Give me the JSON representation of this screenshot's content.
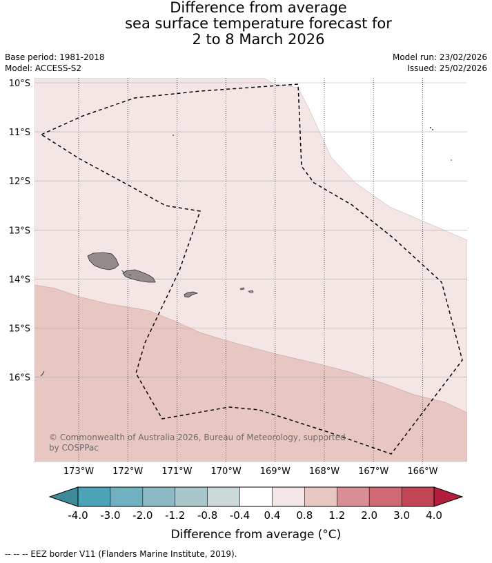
{
  "title": {
    "line1": "Difference from average",
    "line2": "sea surface temperature forecast for",
    "line3": "2 to 8 March 2026"
  },
  "meta": {
    "base_period": "Base period: 1981-2018",
    "model": "Model: ACCESS-S2",
    "model_run": "Model run: 23/02/2026",
    "issued": "Issued: 25/02/2026"
  },
  "map": {
    "lat_labels": [
      "10°S",
      "11°S",
      "12°S",
      "13°S",
      "14°S",
      "15°S",
      "16°S"
    ],
    "lon_labels": [
      "173°W",
      "172°W",
      "171°W",
      "170°W",
      "169°W",
      "168°W",
      "167°W",
      "166°W"
    ],
    "copyright_line1": "© Commonwealth of Australia 2026, Bureau of Meteorology, supported",
    "copyright_line2": "by COSPPac",
    "colors": {
      "class_0p4_0p8": "#f4e6e5",
      "class_0p8_1p2": "#e8c7c3",
      "land": "#948c8c",
      "land_outline": "#2a2a2a",
      "grid": "#555555",
      "eez": "#000000"
    }
  },
  "colorbar": {
    "ticks": [
      "-4.0",
      "-3.0",
      "-2.0",
      "-1.2",
      "-0.8",
      "-0.4",
      "0.4",
      "0.8",
      "1.2",
      "2.0",
      "3.0",
      "4.0"
    ],
    "colors": [
      "#3e8a99",
      "#4aa3b6",
      "#6fb1c1",
      "#8db9c4",
      "#a9c6cb",
      "#ccd9db",
      "#ffffff",
      "#f4e6e5",
      "#e8c7c3",
      "#d98e95",
      "#cf6a75",
      "#c24555",
      "#b21e3c"
    ],
    "label": "Difference from average (°C)"
  },
  "footer": "--  --  -- EEZ border V11 (Flanders Marine Institute, 2019)."
}
